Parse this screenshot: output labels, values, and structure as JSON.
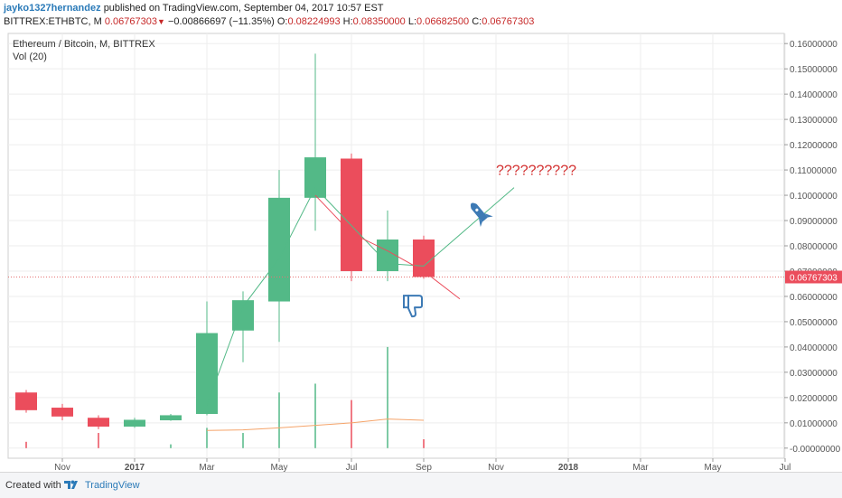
{
  "header": {
    "author": "jayko1327hernandez",
    "published_text": "published on TradingView.com, September 04, 2017 10:57 EST",
    "symbol": "BITTREX:ETHBTC, M",
    "last_price": "0.06767303",
    "change": "−0.00866697 (−11.35%)",
    "o_label": "O:",
    "o_value": "0.08224993",
    "h_label": "H:",
    "h_value": "0.08350000",
    "l_label": "L:",
    "l_value": "0.06682500",
    "c_label": "C:",
    "c_value": "0.06767303"
  },
  "footer": {
    "created_with": "Created with",
    "brand": "TradingView"
  },
  "colors": {
    "up": "#53b987",
    "down": "#eb4d5c",
    "vol_ma": "#f5a46a",
    "price_line": "#e57373",
    "annotation": "#3d7ab5",
    "question": "#d32f2f"
  },
  "chart_data": {
    "type": "candlestick",
    "title": "Ethereum / Bitcoin, M, BITTREX",
    "indicator": "Vol (20)",
    "current_price_label": "0.06767303",
    "current_price": 0.06767303,
    "annotation_text": "??????????",
    "ylim": [
      -0.004,
      0.164
    ],
    "y_ticks": [
      "0.16000000",
      "0.15000000",
      "0.14000000",
      "0.13000000",
      "0.12000000",
      "0.11000000",
      "0.10000000",
      "0.09000000",
      "0.08000000",
      "0.07000000",
      "0.06000000",
      "0.05000000",
      "0.04000000",
      "0.03000000",
      "0.02000000",
      "0.01000000",
      "0.00000000"
    ],
    "y_tick_values": [
      0.16,
      0.15,
      0.14,
      0.13,
      0.12,
      0.11,
      0.1,
      0.09,
      0.08,
      0.07,
      0.06,
      0.05,
      0.04,
      0.03,
      0.02,
      0.01,
      0.0
    ],
    "x_ticks": [
      {
        "label": "Nov",
        "month": 1
      },
      {
        "label": "2017",
        "month": 3
      },
      {
        "label": "Mar",
        "month": 5
      },
      {
        "label": "May",
        "month": 7
      },
      {
        "label": "Jul",
        "month": 9
      },
      {
        "label": "Sep",
        "month": 11
      },
      {
        "label": "Nov",
        "month": 13
      },
      {
        "label": "2018",
        "month": 15
      },
      {
        "label": "Mar",
        "month": 17
      },
      {
        "label": "May",
        "month": 19
      },
      {
        "label": "Jul",
        "month": 21
      }
    ],
    "candles": [
      {
        "month": "2016-10",
        "o": 0.022,
        "h": 0.023,
        "l": 0.014,
        "c": 0.015,
        "vol": 0.0025
      },
      {
        "month": "2016-11",
        "o": 0.016,
        "h": 0.0175,
        "l": 0.011,
        "c": 0.0125,
        "vol": 0.0
      },
      {
        "month": "2016-12",
        "o": 0.012,
        "h": 0.013,
        "l": 0.0075,
        "c": 0.0085,
        "vol": 0.006
      },
      {
        "month": "2017-01",
        "o": 0.0085,
        "h": 0.012,
        "l": 0.008,
        "c": 0.0112,
        "vol": 0.0
      },
      {
        "month": "2017-02",
        "o": 0.011,
        "h": 0.0135,
        "l": 0.0108,
        "c": 0.013,
        "vol": 0.0015
      },
      {
        "month": "2017-03",
        "o": 0.0135,
        "h": 0.058,
        "l": 0.013,
        "c": 0.0455,
        "vol": 0.008
      },
      {
        "month": "2017-04",
        "o": 0.0465,
        "h": 0.062,
        "l": 0.034,
        "c": 0.0585,
        "vol": 0.006
      },
      {
        "month": "2017-05",
        "o": 0.058,
        "h": 0.11,
        "l": 0.042,
        "c": 0.099,
        "vol": 0.022
      },
      {
        "month": "2017-06",
        "o": 0.099,
        "h": 0.156,
        "l": 0.086,
        "c": 0.115,
        "vol": 0.0255
      },
      {
        "month": "2017-07",
        "o": 0.1145,
        "h": 0.1165,
        "l": 0.066,
        "c": 0.07,
        "vol": 0.019
      },
      {
        "month": "2017-08",
        "o": 0.07,
        "h": 0.094,
        "l": 0.066,
        "c": 0.0825,
        "vol": 0.04
      },
      {
        "month": "2017-09",
        "o": 0.0825,
        "h": 0.084,
        "l": 0.067,
        "c": 0.0677,
        "vol": 0.0035
      }
    ],
    "volume_ma": [
      {
        "month": 5,
        "value": 0.007
      },
      {
        "month": 6,
        "value": 0.0072
      },
      {
        "month": 7,
        "value": 0.008
      },
      {
        "month": 8,
        "value": 0.009
      },
      {
        "month": 9,
        "value": 0.01
      },
      {
        "month": 10,
        "value": 0.0115
      },
      {
        "month": 11,
        "value": 0.011
      }
    ],
    "drawings": {
      "green_path": [
        [
          5,
          0.017
        ],
        [
          6,
          0.056
        ],
        [
          7,
          0.075
        ],
        [
          8,
          0.103
        ],
        [
          10,
          0.073
        ],
        [
          11,
          0.072
        ],
        [
          13.5,
          0.103
        ]
      ],
      "red_path": [
        [
          8,
          0.1
        ],
        [
          9,
          0.085
        ],
        [
          10,
          0.078
        ],
        [
          11,
          0.07
        ],
        [
          12,
          0.059
        ]
      ],
      "rocket_at": [
        12.6,
        0.092
      ],
      "thumbs_down_at": [
        10.7,
        0.056
      ],
      "question_at": [
        13.0,
        0.108
      ]
    }
  }
}
